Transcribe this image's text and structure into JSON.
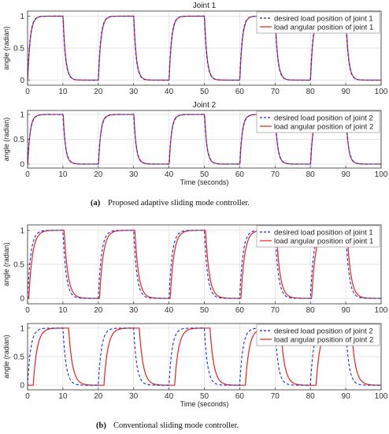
{
  "captions": {
    "a_label": "(a)",
    "a_text": "Proposed adaptive sliding mode controller.",
    "b_label": "(b)",
    "b_text": "Conventional sliding mode controller."
  },
  "colors": {
    "desired": "#1f2bd6",
    "actual": "#e8221b",
    "grid": "#dddddd",
    "axis": "#333333"
  },
  "chart_data": [
    {
      "type": "line",
      "title": "Joint 1",
      "xlabel": "",
      "ylabel": "angle (radian)",
      "xlim": [
        0,
        100
      ],
      "ylim": [
        -0.08,
        1.08
      ],
      "xticks": [
        0,
        10,
        20,
        30,
        40,
        50,
        60,
        70,
        80,
        90,
        100
      ],
      "yticks": [
        0,
        0.5,
        1
      ],
      "ytick_labels": [
        "0",
        "0.5",
        "1"
      ],
      "grid": true,
      "legend": "top-right",
      "series": [
        {
          "name": "desired load position of joint 1",
          "style": "dashed",
          "tau": 0.7,
          "lag": 0,
          "overshoot": 0
        },
        {
          "name": "load angular position of joint 1",
          "style": "solid",
          "tau": 0.72,
          "lag": 0.05,
          "overshoot": 0
        }
      ]
    },
    {
      "type": "line",
      "title": "Joint 2",
      "xlabel": "Time (seconds)",
      "ylabel": "angle (radian)",
      "xlim": [
        0,
        100
      ],
      "ylim": [
        -0.08,
        1.08
      ],
      "xticks": [
        0,
        10,
        20,
        30,
        40,
        50,
        60,
        70,
        80,
        90,
        100
      ],
      "yticks": [
        0,
        0.5,
        1
      ],
      "ytick_labels": [
        "0",
        "0.5",
        "1"
      ],
      "grid": true,
      "legend": "top-right",
      "series": [
        {
          "name": "desired load position of joint 2",
          "style": "dashed",
          "tau": 0.75,
          "lag": 0,
          "overshoot": 0
        },
        {
          "name": "load angular position of joint 2",
          "style": "solid",
          "tau": 0.7,
          "lag": 0.08,
          "overshoot": 0.05
        }
      ]
    },
    {
      "type": "line",
      "title": "",
      "xlabel": "",
      "ylabel": "angle (radian)",
      "xlim": [
        0,
        100
      ],
      "ylim": [
        -0.08,
        1.08
      ],
      "xticks": [
        0,
        10,
        20,
        30,
        40,
        50,
        60,
        70,
        80,
        90,
        100
      ],
      "yticks": [
        0,
        0.5,
        1
      ],
      "ytick_labels": [
        "0",
        "0.5",
        "1"
      ],
      "grid": true,
      "legend": "top-right",
      "series": [
        {
          "name": "desired load position of joint 1",
          "style": "dashed",
          "tau": 0.9,
          "lag": 0,
          "overshoot": 0
        },
        {
          "name": "load angular position of joint 1",
          "style": "solid",
          "tau": 1.05,
          "lag": 0.35,
          "overshoot": 0
        }
      ]
    },
    {
      "type": "line",
      "title": "",
      "xlabel": "Time (seconds)",
      "ylabel": "angle (radian)",
      "xlim": [
        0,
        100
      ],
      "ylim": [
        -0.08,
        1.08
      ],
      "xticks": [
        0,
        10,
        20,
        30,
        40,
        50,
        60,
        70,
        80,
        90,
        100
      ],
      "yticks": [
        0,
        0.5,
        1
      ],
      "ytick_labels": [
        "0",
        "0.5",
        "1"
      ],
      "grid": true,
      "legend": "top-right",
      "series": [
        {
          "name": "desired load position of joint 2",
          "style": "dashed",
          "tau": 0.9,
          "lag": 0,
          "overshoot": 0
        },
        {
          "name": "load angular position of joint 2",
          "style": "solid",
          "tau": 1.1,
          "lag": 1.6,
          "overshoot": 0
        }
      ]
    }
  ]
}
